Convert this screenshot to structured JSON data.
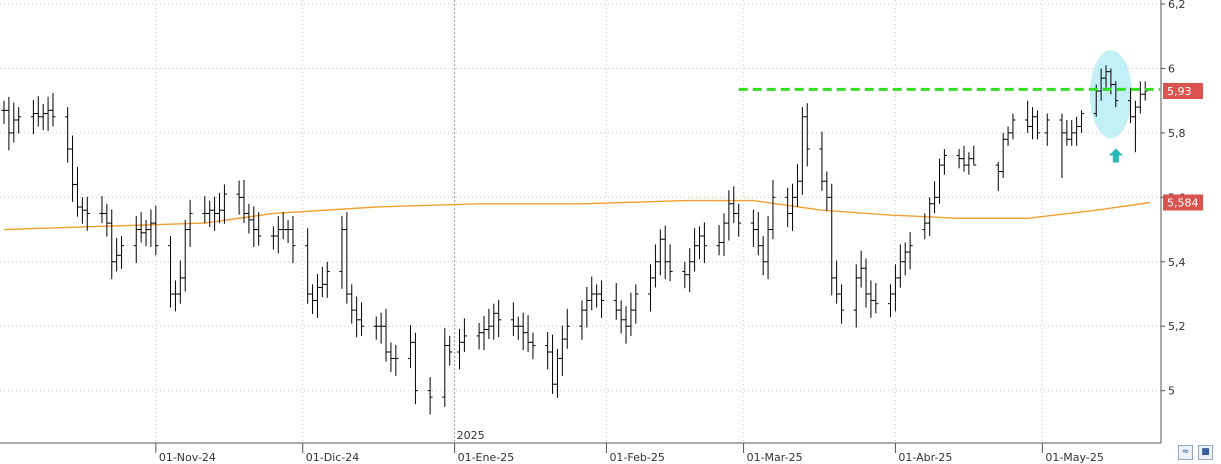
{
  "chart_data": {
    "type": "ohlc",
    "x_start": "2024-10-01",
    "x_end": "2025-05-24",
    "ylim": [
      4.85,
      6.2
    ],
    "y_ticks": [
      5,
      5.2,
      5.4,
      5.6,
      5.8,
      6,
      6.2
    ],
    "y_tick_labels": [
      "5",
      "5,2",
      "5,4",
      "5,6",
      "5,8",
      "6",
      "6,2"
    ],
    "x_ticks": [
      {
        "date": "2024-11-01",
        "label": "01-Nov-24"
      },
      {
        "date": "2024-12-01",
        "label": "01-Dic-24"
      },
      {
        "date": "2025-01-01",
        "label": "01-Ene-25"
      },
      {
        "date": "2025-02-01",
        "label": "01-Feb-25"
      },
      {
        "date": "2025-03-01",
        "label": "01-Mar-25"
      },
      {
        "date": "2025-04-01",
        "label": "01-Abr-25"
      },
      {
        "date": "2025-05-01",
        "label": "01-May-25"
      }
    ],
    "year_marker": {
      "date": "2025-01-01",
      "label": "2025"
    },
    "grid": true,
    "series": [
      {
        "type": "close",
        "points": [
          [
            "2024-10-01",
            5.87
          ],
          [
            "2024-10-02",
            5.8
          ],
          [
            "2024-10-03",
            5.84
          ],
          [
            "2024-10-04",
            5.85
          ],
          [
            "2024-10-07",
            5.86
          ],
          [
            "2024-10-08",
            5.85
          ],
          [
            "2024-10-09",
            5.86
          ],
          [
            "2024-10-10",
            5.87
          ],
          [
            "2024-10-11",
            5.85
          ],
          [
            "2024-10-14",
            5.75
          ],
          [
            "2024-10-15",
            5.64
          ],
          [
            "2024-10-16",
            5.57
          ],
          [
            "2024-10-17",
            5.56
          ],
          [
            "2024-10-18",
            5.55
          ],
          [
            "2024-10-21",
            5.55
          ],
          [
            "2024-10-22",
            5.52
          ],
          [
            "2024-10-23",
            5.4
          ],
          [
            "2024-10-24",
            5.42
          ],
          [
            "2024-10-25",
            5.45
          ],
          [
            "2024-10-28",
            5.5
          ],
          [
            "2024-10-29",
            5.49
          ],
          [
            "2024-10-30",
            5.5
          ],
          [
            "2024-10-31",
            5.52
          ],
          [
            "2024-11-01",
            5.45
          ],
          [
            "2024-11-04",
            5.3
          ],
          [
            "2024-11-05",
            5.3
          ],
          [
            "2024-11-06",
            5.35
          ],
          [
            "2024-11-07",
            5.5
          ],
          [
            "2024-11-08",
            5.55
          ],
          [
            "2024-11-11",
            5.55
          ],
          [
            "2024-11-12",
            5.56
          ],
          [
            "2024-11-13",
            5.55
          ],
          [
            "2024-11-14",
            5.56
          ],
          [
            "2024-11-15",
            5.61
          ],
          [
            "2024-11-18",
            5.6
          ],
          [
            "2024-11-19",
            5.55
          ],
          [
            "2024-11-20",
            5.53
          ],
          [
            "2024-11-21",
            5.5
          ],
          [
            "2024-11-22",
            5.48
          ],
          [
            "2024-11-25",
            5.48
          ],
          [
            "2024-11-26",
            5.5
          ],
          [
            "2024-11-27",
            5.5
          ],
          [
            "2024-11-28",
            5.5
          ],
          [
            "2024-11-29",
            5.45
          ],
          [
            "2024-12-02",
            5.3
          ],
          [
            "2024-12-03",
            5.28
          ],
          [
            "2024-12-04",
            5.32
          ],
          [
            "2024-12-05",
            5.33
          ],
          [
            "2024-12-06",
            5.37
          ],
          [
            "2024-12-09",
            5.5
          ],
          [
            "2024-12-10",
            5.3
          ],
          [
            "2024-12-11",
            5.25
          ],
          [
            "2024-12-12",
            5.22
          ],
          [
            "2024-12-13",
            5.2
          ],
          [
            "2024-12-16",
            5.2
          ],
          [
            "2024-12-17",
            5.2
          ],
          [
            "2024-12-18",
            5.12
          ],
          [
            "2024-12-19",
            5.1
          ],
          [
            "2024-12-20",
            5.1
          ],
          [
            "2024-12-23",
            5.15
          ],
          [
            "2024-12-24",
            5.0
          ],
          [
            "2024-12-27",
            4.98
          ],
          [
            "2024-12-30",
            5.14
          ],
          [
            "2024-12-31",
            5.12
          ],
          [
            "2025-01-02",
            5.15
          ],
          [
            "2025-01-03",
            5.17
          ],
          [
            "2025-01-06",
            5.18
          ],
          [
            "2025-01-07",
            5.19
          ],
          [
            "2025-01-08",
            5.2
          ],
          [
            "2025-01-09",
            5.24
          ],
          [
            "2025-01-10",
            5.22
          ],
          [
            "2025-01-13",
            5.2
          ],
          [
            "2025-01-14",
            5.2
          ],
          [
            "2025-01-15",
            5.18
          ],
          [
            "2025-01-16",
            5.15
          ],
          [
            "2025-01-17",
            5.14
          ],
          [
            "2025-01-20",
            5.12
          ],
          [
            "2025-01-21",
            5.02
          ],
          [
            "2025-01-22",
            5.1
          ],
          [
            "2025-01-23",
            5.16
          ],
          [
            "2025-01-24",
            5.2
          ],
          [
            "2025-01-27",
            5.25
          ],
          [
            "2025-01-28",
            5.28
          ],
          [
            "2025-01-29",
            5.3
          ],
          [
            "2025-01-30",
            5.3
          ],
          [
            "2025-01-31",
            5.28
          ],
          [
            "2025-02-03",
            5.25
          ],
          [
            "2025-02-04",
            5.22
          ],
          [
            "2025-02-05",
            5.2
          ],
          [
            "2025-02-06",
            5.25
          ],
          [
            "2025-02-07",
            5.3
          ],
          [
            "2025-02-10",
            5.35
          ],
          [
            "2025-02-11",
            5.4
          ],
          [
            "2025-02-12",
            5.47
          ],
          [
            "2025-02-13",
            5.4
          ],
          [
            "2025-02-14",
            5.37
          ],
          [
            "2025-02-17",
            5.36
          ],
          [
            "2025-02-18",
            5.4
          ],
          [
            "2025-02-19",
            5.45
          ],
          [
            "2025-02-20",
            5.48
          ],
          [
            "2025-02-21",
            5.45
          ],
          [
            "2025-02-24",
            5.46
          ],
          [
            "2025-02-25",
            5.52
          ],
          [
            "2025-02-26",
            5.58
          ],
          [
            "2025-02-27",
            5.55
          ],
          [
            "2025-02-28",
            5.52
          ],
          [
            "2025-03-03",
            5.5
          ],
          [
            "2025-03-04",
            5.45
          ],
          [
            "2025-03-05",
            5.4
          ],
          [
            "2025-03-06",
            5.5
          ],
          [
            "2025-03-07",
            5.6
          ],
          [
            "2025-03-10",
            5.55
          ],
          [
            "2025-03-11",
            5.6
          ],
          [
            "2025-03-12",
            5.65
          ],
          [
            "2025-03-13",
            5.85
          ],
          [
            "2025-03-14",
            5.75
          ],
          [
            "2025-03-17",
            5.65
          ],
          [
            "2025-03-18",
            5.6
          ],
          [
            "2025-03-19",
            5.35
          ],
          [
            "2025-03-20",
            5.3
          ],
          [
            "2025-03-21",
            5.25
          ],
          [
            "2025-03-24",
            5.35
          ],
          [
            "2025-03-25",
            5.38
          ],
          [
            "2025-03-26",
            5.3
          ],
          [
            "2025-03-27",
            5.28
          ],
          [
            "2025-03-28",
            5.27
          ],
          [
            "2025-03-31",
            5.3
          ],
          [
            "2025-04-01",
            5.35
          ],
          [
            "2025-04-02",
            5.4
          ],
          [
            "2025-04-03",
            5.43
          ],
          [
            "2025-04-04",
            5.45
          ],
          [
            "2025-04-07",
            5.48
          ],
          [
            "2025-04-08",
            5.5
          ],
          [
            "2025-04-09",
            5.44
          ],
          [
            "2025-04-10",
            5.42
          ],
          [
            "2025-04-11",
            5.45
          ],
          [
            "2025-04-14",
            5.47
          ],
          [
            "2025-04-15",
            5.48
          ],
          [
            "2025-04-16",
            5.5
          ],
          [
            "2025-04-17",
            5.47
          ],
          [
            "2025-04-22",
            5.45
          ],
          [
            "2025-04-23",
            5.6
          ],
          [
            "2025-04-24",
            5.45
          ],
          [
            "2025-04-25",
            5.1
          ],
          [
            "2025-04-28",
            5.25
          ],
          [
            "2025-04-29",
            5.15
          ],
          [
            "2025-04-30",
            5.02
          ],
          [
            "2025-05-02",
            5.2
          ],
          [
            "2025-05-05",
            5.35
          ],
          [
            "2025-05-06",
            5.4
          ]
        ]
      },
      {
        "type": "ohlc_detail",
        "note_range": "2025-05-07 to 2025-05-23",
        "bars": [
          [
            "2025-04-07",
            5.5,
            5.55,
            5.47,
            5.52
          ],
          [
            "2025-04-08",
            5.52,
            5.6,
            5.48,
            5.58
          ],
          [
            "2025-04-09",
            5.58,
            5.65,
            5.55,
            5.6
          ],
          [
            "2025-04-10",
            5.6,
            5.72,
            5.58,
            5.7
          ],
          [
            "2025-04-11",
            5.7,
            5.75,
            5.67,
            5.73
          ],
          [
            "2025-04-14",
            5.73,
            5.75,
            5.69,
            5.72
          ],
          [
            "2025-04-15",
            5.72,
            5.76,
            5.68,
            5.7
          ],
          [
            "2025-04-16",
            5.7,
            5.74,
            5.67,
            5.72
          ],
          [
            "2025-04-17",
            5.72,
            5.76,
            5.7,
            5.7
          ],
          [
            "2025-04-22",
            5.7,
            5.71,
            5.62,
            5.68
          ],
          [
            "2025-04-23",
            5.68,
            5.8,
            5.66,
            5.78
          ],
          [
            "2025-04-24",
            5.78,
            5.82,
            5.76,
            5.8
          ],
          [
            "2025-04-25",
            5.8,
            5.86,
            5.78,
            5.84
          ],
          [
            "2025-04-28",
            5.84,
            5.9,
            5.8,
            5.82
          ],
          [
            "2025-04-29",
            5.82,
            5.88,
            5.78,
            5.85
          ],
          [
            "2025-04-30",
            5.85,
            5.87,
            5.78,
            5.8
          ],
          [
            "2025-05-02",
            5.8,
            5.86,
            5.76,
            5.84
          ],
          [
            "2025-05-05",
            5.84,
            5.86,
            5.66,
            5.8
          ],
          [
            "2025-05-06",
            5.8,
            5.84,
            5.76,
            5.78
          ],
          [
            "2025-05-07",
            5.78,
            5.84,
            5.76,
            5.8
          ],
          [
            "2025-05-08",
            5.8,
            5.85,
            5.76,
            5.82
          ],
          [
            "2025-05-09",
            5.82,
            5.87,
            5.8,
            5.86
          ],
          [
            "2025-05-12",
            5.86,
            5.95,
            5.85,
            5.93
          ],
          [
            "2025-05-13",
            5.93,
            6.0,
            5.9,
            5.97
          ],
          [
            "2025-05-14",
            5.97,
            6.01,
            5.94,
            5.99
          ],
          [
            "2025-05-15",
            5.99,
            6.0,
            5.92,
            5.95
          ],
          [
            "2025-05-16",
            5.95,
            5.96,
            5.88,
            5.9
          ],
          [
            "2025-05-19",
            5.9,
            5.94,
            5.83,
            5.85
          ],
          [
            "2025-05-20",
            5.85,
            5.9,
            5.74,
            5.88
          ],
          [
            "2025-05-21",
            5.88,
            5.96,
            5.86,
            5.92
          ],
          [
            "2025-05-22",
            5.92,
            5.96,
            5.9,
            5.93
          ]
        ]
      }
    ],
    "moving_average": {
      "color": "#f0a030",
      "points": [
        [
          "2024-10-01",
          5.5
        ],
        [
          "2024-10-21",
          5.51
        ],
        [
          "2024-11-11",
          5.52
        ],
        [
          "2024-11-25",
          5.55
        ],
        [
          "2024-12-16",
          5.57
        ],
        [
          "2025-01-06",
          5.58
        ],
        [
          "2025-01-27",
          5.58
        ],
        [
          "2025-02-17",
          5.59
        ],
        [
          "2025-03-03",
          5.59
        ],
        [
          "2025-03-17",
          5.56
        ],
        [
          "2025-03-31",
          5.545
        ],
        [
          "2025-04-14",
          5.535
        ],
        [
          "2025-04-28",
          5.535
        ],
        [
          "2025-05-12",
          5.56
        ],
        [
          "2025-05-23",
          5.584
        ]
      ]
    },
    "resistance_line": {
      "y": 5.935,
      "from": "2025-02-28",
      "to": "2025-05-23",
      "color": "#33dd22"
    },
    "highlight_ellipse": {
      "date": "2025-05-15",
      "y": 5.92,
      "color": "#b8ecf6"
    },
    "arrow": {
      "date": "2025-05-16",
      "y": 5.73,
      "direction": "up",
      "color": "#28b8b8"
    },
    "price_labels": [
      {
        "label": "5,93",
        "value": 5.93,
        "color": "#d9534f"
      },
      {
        "label": "5,584",
        "value": 5.584,
        "color": "#d9534f"
      }
    ]
  },
  "ui": {
    "zoom_icon": "double-chevron-icon",
    "save_icon": "floppy-disk-icon"
  }
}
